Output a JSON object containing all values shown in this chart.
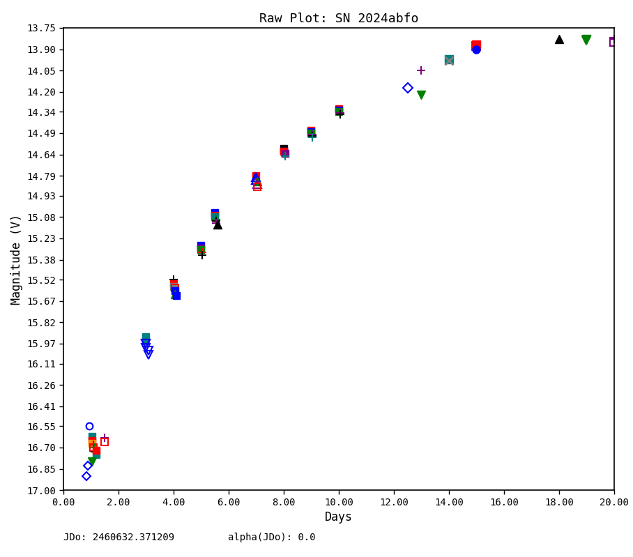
{
  "title": "Raw Plot: SN 2024abfo",
  "xlabel": "Days",
  "ylabel": "Magnitude (V)",
  "footer_left": "JDo: 2460632.371209",
  "footer_right": "alpha(JDo): 0.0",
  "xlim": [
    0.0,
    20.0
  ],
  "ylim": [
    17.0,
    13.75
  ],
  "xticks": [
    0.0,
    2.0,
    4.0,
    6.0,
    8.0,
    10.0,
    12.0,
    14.0,
    16.0,
    18.0,
    20.0
  ],
  "yticks": [
    13.75,
    13.9,
    14.05,
    14.2,
    14.34,
    14.49,
    14.64,
    14.79,
    14.93,
    15.08,
    15.23,
    15.38,
    15.52,
    15.67,
    15.82,
    15.97,
    16.11,
    16.26,
    16.41,
    16.55,
    16.7,
    16.85,
    17.0
  ],
  "title_color": "black",
  "series": [
    {
      "day": 0.95,
      "mag": 16.55,
      "color": "#0000FF",
      "marker": "o",
      "ms": 7,
      "mfc": "none",
      "mew": 1.5
    },
    {
      "day": 1.05,
      "mag": 16.62,
      "color": "#008080",
      "marker": "s",
      "ms": 7,
      "mfc": "#008080",
      "mew": 1.0
    },
    {
      "day": 1.05,
      "mag": 16.65,
      "color": "#FF0000",
      "marker": "s",
      "ms": 7,
      "mfc": "#FF0000",
      "mew": 1.0
    },
    {
      "day": 1.05,
      "mag": 16.67,
      "color": "#FF8C00",
      "marker": "s",
      "ms": 7,
      "mfc": "#FF8C00",
      "mew": 1.0
    },
    {
      "day": 1.1,
      "mag": 16.68,
      "color": "#800080",
      "marker": "+",
      "ms": 9,
      "mfc": "#800080",
      "mew": 1.5
    },
    {
      "day": 1.1,
      "mag": 16.7,
      "color": "#FF0000",
      "marker": "s",
      "ms": 7,
      "mfc": "none",
      "mew": 1.5
    },
    {
      "day": 1.15,
      "mag": 16.7,
      "color": "#008000",
      "marker": "+",
      "ms": 9,
      "mfc": "#008000",
      "mew": 1.5
    },
    {
      "day": 1.15,
      "mag": 16.73,
      "color": "#000000",
      "marker": "+",
      "ms": 9,
      "mfc": "#000000",
      "mew": 1.5
    },
    {
      "day": 1.2,
      "mag": 16.75,
      "color": "#008080",
      "marker": "s",
      "ms": 7,
      "mfc": "#008080",
      "mew": 1.0
    },
    {
      "day": 1.2,
      "mag": 16.72,
      "color": "#FF0000",
      "marker": "s",
      "ms": 7,
      "mfc": "#FF0000",
      "mew": 1.0
    },
    {
      "day": 1.05,
      "mag": 16.8,
      "color": "#008000",
      "marker": "v",
      "ms": 8,
      "mfc": "#008000",
      "mew": 1.0
    },
    {
      "day": 0.9,
      "mag": 16.83,
      "color": "#0000FF",
      "marker": "D",
      "ms": 6,
      "mfc": "none",
      "mew": 1.5
    },
    {
      "day": 0.85,
      "mag": 16.9,
      "color": "#0000FF",
      "marker": "D",
      "ms": 6,
      "mfc": "none",
      "mew": 1.5
    },
    {
      "day": 1.5,
      "mag": 16.63,
      "color": "#800080",
      "marker": "+",
      "ms": 9,
      "mfc": "#800080",
      "mew": 1.5
    },
    {
      "day": 1.5,
      "mag": 16.66,
      "color": "#FF0000",
      "marker": "s",
      "ms": 7,
      "mfc": "none",
      "mew": 1.5
    },
    {
      "day": 3.0,
      "mag": 15.92,
      "color": "#008080",
      "marker": "s",
      "ms": 7,
      "mfc": "#008080",
      "mew": 1.0
    },
    {
      "day": 3.0,
      "mag": 15.95,
      "color": "#008080",
      "marker": "s",
      "ms": 7,
      "mfc": "#008080",
      "mew": 1.0
    },
    {
      "day": 3.0,
      "mag": 15.97,
      "color": "#800080",
      "marker": "v",
      "ms": 8,
      "mfc": "none",
      "mew": 1.5
    },
    {
      "day": 3.0,
      "mag": 15.97,
      "color": "#0000FF",
      "marker": "v",
      "ms": 8,
      "mfc": "none",
      "mew": 1.5
    },
    {
      "day": 3.0,
      "mag": 16.0,
      "color": "#0000FF",
      "marker": "v",
      "ms": 8,
      "mfc": "none",
      "mew": 1.5
    },
    {
      "day": 3.1,
      "mag": 16.02,
      "color": "#0000FF",
      "marker": "v",
      "ms": 8,
      "mfc": "none",
      "mew": 1.5
    },
    {
      "day": 3.1,
      "mag": 16.05,
      "color": "#0000FF",
      "marker": "v",
      "ms": 8,
      "mfc": "none",
      "mew": 1.5
    },
    {
      "day": 4.0,
      "mag": 15.52,
      "color": "#000000",
      "marker": "+",
      "ms": 9,
      "mfc": "#000000",
      "mew": 1.5
    },
    {
      "day": 4.0,
      "mag": 15.55,
      "color": "#FF0000",
      "marker": "s",
      "ms": 7,
      "mfc": "#FF0000",
      "mew": 1.0
    },
    {
      "day": 4.0,
      "mag": 15.57,
      "color": "#808080",
      "marker": "s",
      "ms": 7,
      "mfc": "#808080",
      "mew": 1.0
    },
    {
      "day": 4.05,
      "mag": 15.58,
      "color": "#FF0000",
      "marker": "s",
      "ms": 7,
      "mfc": "none",
      "mew": 1.5
    },
    {
      "day": 4.05,
      "mag": 15.6,
      "color": "#0000FF",
      "marker": "s",
      "ms": 7,
      "mfc": "#0000FF",
      "mew": 1.0
    },
    {
      "day": 4.05,
      "mag": 15.62,
      "color": "#008000",
      "marker": "^",
      "ms": 8,
      "mfc": "#008000",
      "mew": 1.0
    },
    {
      "day": 4.1,
      "mag": 15.63,
      "color": "#0000FF",
      "marker": "s",
      "ms": 7,
      "mfc": "#0000FF",
      "mew": 1.0
    },
    {
      "day": 5.0,
      "mag": 15.28,
      "color": "#0000FF",
      "marker": "s",
      "ms": 7,
      "mfc": "#0000FF",
      "mew": 1.0
    },
    {
      "day": 5.0,
      "mag": 15.3,
      "color": "#800080",
      "marker": "s",
      "ms": 7,
      "mfc": "#800080",
      "mew": 1.0
    },
    {
      "day": 5.0,
      "mag": 15.31,
      "color": "#008000",
      "marker": "s",
      "ms": 7,
      "mfc": "#008000",
      "mew": 1.0
    },
    {
      "day": 5.05,
      "mag": 15.33,
      "color": "#FF0000",
      "marker": "+",
      "ms": 9,
      "mfc": "#FF0000",
      "mew": 1.5
    },
    {
      "day": 5.05,
      "mag": 15.35,
      "color": "#000000",
      "marker": "+",
      "ms": 9,
      "mfc": "#000000",
      "mew": 1.5
    },
    {
      "day": 5.5,
      "mag": 15.05,
      "color": "#0000FF",
      "marker": "s",
      "ms": 7,
      "mfc": "#0000FF",
      "mew": 1.0
    },
    {
      "day": 5.5,
      "mag": 15.07,
      "color": "#FF0000",
      "marker": "s",
      "ms": 7,
      "mfc": "#FF0000",
      "mew": 1.0
    },
    {
      "day": 5.5,
      "mag": 15.08,
      "color": "#008080",
      "marker": "s",
      "ms": 7,
      "mfc": "#008080",
      "mew": 1.0
    },
    {
      "day": 5.55,
      "mag": 15.1,
      "color": "#008000",
      "marker": "+",
      "ms": 9,
      "mfc": "#008000",
      "mew": 1.5
    },
    {
      "day": 5.55,
      "mag": 15.11,
      "color": "#000000",
      "marker": "+",
      "ms": 9,
      "mfc": "#000000",
      "mew": 1.5
    },
    {
      "day": 5.55,
      "mag": 15.12,
      "color": "#800080",
      "marker": "+",
      "ms": 9,
      "mfc": "#800080",
      "mew": 1.5
    },
    {
      "day": 5.6,
      "mag": 15.13,
      "color": "#000000",
      "marker": "^",
      "ms": 8,
      "mfc": "#000000",
      "mew": 1.0
    },
    {
      "day": 7.0,
      "mag": 14.79,
      "color": "#FF0000",
      "marker": "s",
      "ms": 7,
      "mfc": "#FF0000",
      "mew": 1.0
    },
    {
      "day": 7.0,
      "mag": 14.8,
      "color": "#0000FF",
      "marker": "^",
      "ms": 8,
      "mfc": "none",
      "mew": 1.5
    },
    {
      "day": 7.0,
      "mag": 14.82,
      "color": "#0000FF",
      "marker": "^",
      "ms": 8,
      "mfc": "none",
      "mew": 1.5
    },
    {
      "day": 7.05,
      "mag": 14.83,
      "color": "#008000",
      "marker": "^",
      "ms": 8,
      "mfc": "#008000",
      "mew": 1.0
    },
    {
      "day": 7.05,
      "mag": 14.85,
      "color": "#800080",
      "marker": "^",
      "ms": 8,
      "mfc": "none",
      "mew": 1.5
    },
    {
      "day": 7.05,
      "mag": 14.87,
      "color": "#FF0000",
      "marker": "s",
      "ms": 7,
      "mfc": "none",
      "mew": 1.5
    },
    {
      "day": 8.0,
      "mag": 14.6,
      "color": "#000000",
      "marker": "s",
      "ms": 7,
      "mfc": "#000000",
      "mew": 1.0
    },
    {
      "day": 8.0,
      "mag": 14.62,
      "color": "#0000FF",
      "marker": "s",
      "ms": 7,
      "mfc": "#0000FF",
      "mew": 1.0
    },
    {
      "day": 8.0,
      "mag": 14.62,
      "color": "#FF0000",
      "marker": "s",
      "ms": 7,
      "mfc": "#FF0000",
      "mew": 1.0
    },
    {
      "day": 8.05,
      "mag": 14.63,
      "color": "#800080",
      "marker": "s",
      "ms": 7,
      "mfc": "#800080",
      "mew": 1.0
    },
    {
      "day": 8.05,
      "mag": 14.65,
      "color": "#008000",
      "marker": "+",
      "ms": 9,
      "mfc": "#008000",
      "mew": 1.5
    },
    {
      "day": 8.05,
      "mag": 14.65,
      "color": "#008080",
      "marker": "+",
      "ms": 9,
      "mfc": "#008080",
      "mew": 1.5
    },
    {
      "day": 9.0,
      "mag": 14.47,
      "color": "#FF0000",
      "marker": "s",
      "ms": 7,
      "mfc": "#FF0000",
      "mew": 1.0
    },
    {
      "day": 9.0,
      "mag": 14.48,
      "color": "#0000FF",
      "marker": "s",
      "ms": 7,
      "mfc": "#0000FF",
      "mew": 1.0
    },
    {
      "day": 9.0,
      "mag": 14.49,
      "color": "#008000",
      "marker": "s",
      "ms": 7,
      "mfc": "#008000",
      "mew": 1.0
    },
    {
      "day": 9.05,
      "mag": 14.5,
      "color": "#800080",
      "marker": "+",
      "ms": 9,
      "mfc": "#800080",
      "mew": 1.5
    },
    {
      "day": 9.05,
      "mag": 14.51,
      "color": "#000000",
      "marker": "+",
      "ms": 9,
      "mfc": "#000000",
      "mew": 1.5
    },
    {
      "day": 9.05,
      "mag": 14.52,
      "color": "#008080",
      "marker": "+",
      "ms": 9,
      "mfc": "#008080",
      "mew": 1.5
    },
    {
      "day": 10.0,
      "mag": 14.32,
      "color": "#FF0000",
      "marker": "s",
      "ms": 7,
      "mfc": "#FF0000",
      "mew": 1.0
    },
    {
      "day": 10.0,
      "mag": 14.33,
      "color": "#0000FF",
      "marker": "s",
      "ms": 7,
      "mfc": "#0000FF",
      "mew": 1.0
    },
    {
      "day": 10.0,
      "mag": 14.34,
      "color": "#008000",
      "marker": "s",
      "ms": 7,
      "mfc": "#008000",
      "mew": 1.0
    },
    {
      "day": 10.05,
      "mag": 14.35,
      "color": "#800080",
      "marker": "+",
      "ms": 9,
      "mfc": "#800080",
      "mew": 1.5
    },
    {
      "day": 10.05,
      "mag": 14.36,
      "color": "#000000",
      "marker": "+",
      "ms": 9,
      "mfc": "#000000",
      "mew": 1.5
    },
    {
      "day": 12.5,
      "mag": 14.17,
      "color": "#0000FF",
      "marker": "D",
      "ms": 7,
      "mfc": "none",
      "mew": 1.5
    },
    {
      "day": 13.0,
      "mag": 14.22,
      "color": "#008000",
      "marker": "v",
      "ms": 8,
      "mfc": "#008000",
      "mew": 1.0
    },
    {
      "day": 13.0,
      "mag": 14.05,
      "color": "#800080",
      "marker": "+",
      "ms": 9,
      "mfc": "#800080",
      "mew": 1.5
    },
    {
      "day": 14.0,
      "mag": 13.97,
      "color": "#008080",
      "marker": "s",
      "ms": 8,
      "mfc": "#008080",
      "mew": 1.0
    },
    {
      "day": 14.0,
      "mag": 13.98,
      "color": "#808080",
      "marker": "x",
      "ms": 8,
      "mfc": "#808080",
      "mew": 2.0
    },
    {
      "day": 15.0,
      "mag": 13.87,
      "color": "#FF0000",
      "marker": "s",
      "ms": 8,
      "mfc": "#FF0000",
      "mew": 1.0
    },
    {
      "day": 15.0,
      "mag": 13.88,
      "color": "#FF0000",
      "marker": "s",
      "ms": 8,
      "mfc": "none",
      "mew": 1.5
    },
    {
      "day": 15.0,
      "mag": 13.9,
      "color": "#0000FF",
      "marker": "o",
      "ms": 8,
      "mfc": "#0000FF",
      "mew": 1.0
    },
    {
      "day": 18.0,
      "mag": 13.83,
      "color": "#000000",
      "marker": "^",
      "ms": 8,
      "mfc": "#000000",
      "mew": 1.0
    },
    {
      "day": 19.0,
      "mag": 13.83,
      "color": "#008000",
      "marker": "v",
      "ms": 8,
      "mfc": "#008000",
      "mew": 1.0
    },
    {
      "day": 19.0,
      "mag": 13.84,
      "color": "#008000",
      "marker": "v",
      "ms": 8,
      "mfc": "none",
      "mew": 1.5
    },
    {
      "day": 20.0,
      "mag": 13.83,
      "color": "#800080",
      "marker": "+",
      "ms": 9,
      "mfc": "#800080",
      "mew": 1.5
    },
    {
      "day": 20.0,
      "mag": 13.85,
      "color": "#800080",
      "marker": "s",
      "ms": 8,
      "mfc": "none",
      "mew": 1.5
    }
  ]
}
